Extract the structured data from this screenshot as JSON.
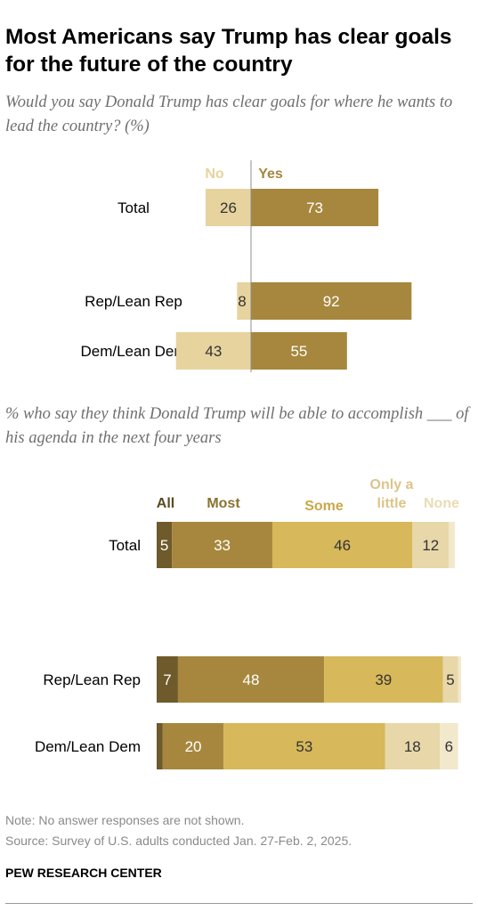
{
  "title": "Most Americans say Trump has clear goals for the future of the country",
  "chart_data": [
    {
      "type": "bar",
      "orientation": "horizontal",
      "stacked": "diverging",
      "subtitle": "Would you say Donald Trump has clear goals for where he wants to lead the country? (%)",
      "categories": [
        "Total",
        "Rep/Lean Rep",
        "Dem/Lean Dem"
      ],
      "series": [
        {
          "name": "No",
          "values": [
            26,
            8,
            43
          ],
          "color": "#e6d39e"
        },
        {
          "name": "Yes",
          "values": [
            73,
            92,
            55
          ],
          "color": "#a6873d"
        }
      ]
    },
    {
      "type": "bar",
      "orientation": "horizontal",
      "stacked": true,
      "subtitle": "% who say they think Donald Trump will be able to accomplish ___ of his agenda in the next four years",
      "categories": [
        "Total",
        "Rep/Lean Rep",
        "Dem/Lean Dem"
      ],
      "series": [
        {
          "name": "All",
          "values": [
            5,
            7,
            2
          ],
          "color": "#6e5a2a",
          "label_color": "#5a4a22"
        },
        {
          "name": "Most",
          "values": [
            33,
            48,
            20
          ],
          "color": "#a6873d",
          "label_color": "#8c7232"
        },
        {
          "name": "Some",
          "values": [
            46,
            39,
            53
          ],
          "color": "#d7b85a",
          "label_color": "#c9a84a"
        },
        {
          "name": "Only a little",
          "values": [
            12,
            5,
            18
          ],
          "color": "#e8d7a8",
          "label_color": "#dcc58a"
        },
        {
          "name": "None",
          "values": [
            2,
            1,
            6
          ],
          "color": "#f2e8cc",
          "label_color": "#e9dcb2"
        }
      ],
      "value_labels": [
        [
          "5",
          "33",
          "46",
          "12",
          ""
        ],
        [
          "7",
          "48",
          "39",
          "5",
          ""
        ],
        [
          "",
          "20",
          "53",
          "18",
          "6"
        ]
      ]
    }
  ],
  "footer": {
    "note": "Note: No answer responses are not shown.",
    "source": "Source: Survey of U.S. adults conducted Jan. 27-Feb. 2, 2025.",
    "org": "PEW RESEARCH CENTER"
  }
}
